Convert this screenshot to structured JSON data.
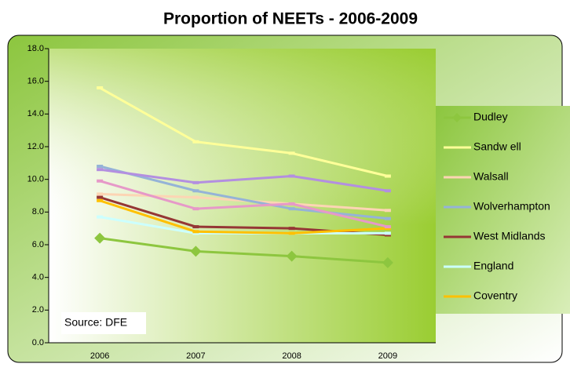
{
  "chart_data": {
    "type": "line",
    "title": "Proportion of NEETs - 2006-2009",
    "annotation": "Source: DFE",
    "categories": [
      "2006",
      "2007",
      "2008",
      "2009"
    ],
    "series": [
      {
        "name": "Dudley",
        "color": "#8dc63f",
        "marker": "diamond",
        "values": [
          6.4,
          5.6,
          5.3,
          4.9
        ]
      },
      {
        "name": "Sandw ell",
        "color": "#ffff99",
        "values": [
          15.6,
          12.3,
          11.6,
          10.2
        ]
      },
      {
        "name": "Walsall",
        "color": "#fcd5b4",
        "values": [
          9.1,
          8.9,
          8.5,
          8.1
        ]
      },
      {
        "name": "Wolverhampton",
        "color": "#95b3d7",
        "values": [
          10.8,
          9.3,
          8.2,
          7.6
        ]
      },
      {
        "name": "West Midlands",
        "color": "#953735",
        "values": [
          8.9,
          7.1,
          7.0,
          6.6
        ]
      },
      {
        "name": "England",
        "color": "#ccffff",
        "values": [
          7.7,
          6.7,
          6.7,
          6.7
        ]
      },
      {
        "name": "Coventry",
        "color": "#ffc000",
        "values": [
          8.7,
          6.8,
          6.7,
          7.0
        ]
      },
      {
        "color": "#b38fe0",
        "values": [
          10.6,
          9.8,
          10.2,
          9.3
        ]
      },
      {
        "color": "#e699c8",
        "values": [
          9.9,
          8.2,
          8.5,
          7.1
        ]
      }
    ],
    "ylim": [
      0,
      18
    ],
    "yticks": [
      {
        "value": 0,
        "label": "0.0"
      },
      {
        "value": 2,
        "label": "2.0"
      },
      {
        "value": 4,
        "label": "4.0"
      },
      {
        "value": 6,
        "label": "6.0"
      },
      {
        "value": 8,
        "label": "8.0"
      },
      {
        "value": 10,
        "label": "10.0"
      },
      {
        "value": 12,
        "label": "12.0"
      },
      {
        "value": 14,
        "label": "14.0"
      },
      {
        "value": 16,
        "label": "16.0"
      },
      {
        "value": 18,
        "label": "18.0"
      }
    ]
  }
}
